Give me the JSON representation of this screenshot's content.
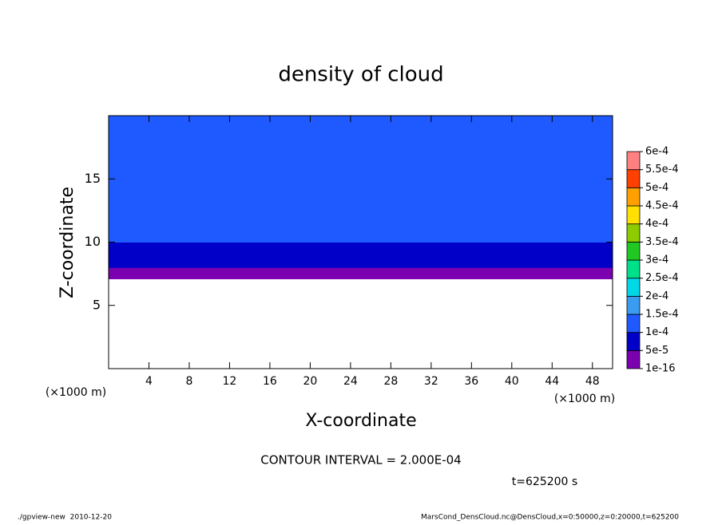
{
  "chart_data": {
    "type": "contour",
    "title": "density of cloud",
    "xlabel": "X-coordinate",
    "ylabel": "Z-coordinate",
    "x_unit": "(×1000 m)",
    "xlim": [
      0,
      50
    ],
    "xticks": [
      4,
      8,
      12,
      16,
      20,
      24,
      28,
      32,
      36,
      40,
      44,
      48
    ],
    "ylim": [
      0,
      20
    ],
    "yticks": [
      5,
      10,
      15
    ],
    "levels": [
      {
        "value": 1e-16,
        "label": "1e-16"
      },
      {
        "value": 5e-05,
        "label": "5e-5"
      },
      {
        "value": 0.0001,
        "label": "1e-4"
      },
      {
        "value": 0.00015,
        "label": "1.5e-4"
      },
      {
        "value": 0.0002,
        "label": "2e-4"
      },
      {
        "value": 0.00025,
        "label": "2.5e-4"
      },
      {
        "value": 0.0003,
        "label": "3e-4"
      },
      {
        "value": 0.00035,
        "label": "3.5e-4"
      },
      {
        "value": 0.0004,
        "label": "4e-4"
      },
      {
        "value": 0.00045,
        "label": "4.5e-4"
      },
      {
        "value": 0.0005,
        "label": "5e-4"
      },
      {
        "value": 0.00055,
        "label": "5.5e-4"
      },
      {
        "value": 0.0006,
        "label": "6e-4"
      }
    ],
    "colors": [
      "#7a00b0",
      "#0000c8",
      "#1e5aff",
      "#3a9bf0",
      "#00d8e8",
      "#00e08a",
      "#22c822",
      "#8ccc00",
      "#ffe000",
      "#ffa000",
      "#ff4000",
      "#ff8080"
    ],
    "z": [
      7.1,
      7.5,
      8,
      8.5,
      9,
      10,
      11,
      12,
      13,
      15,
      17,
      19,
      20
    ],
    "values": [
      3e-05,
      4e-05,
      6e-05,
      8e-05,
      9e-05,
      0.000105,
      0.000115,
      0.000125,
      0.00013,
      0.00014,
      0.000145,
      0.000135,
      0.00013
    ],
    "contour_interval": "CONTOUR INTERVAL = 2.000E-04",
    "time": "t=625200 s",
    "footer_left": "./gpview-new  2010-12-20",
    "footer_right": "MarsCond_DensCloud.nc@DensCloud,x=0:50000,z=0:20000,t=625200"
  }
}
